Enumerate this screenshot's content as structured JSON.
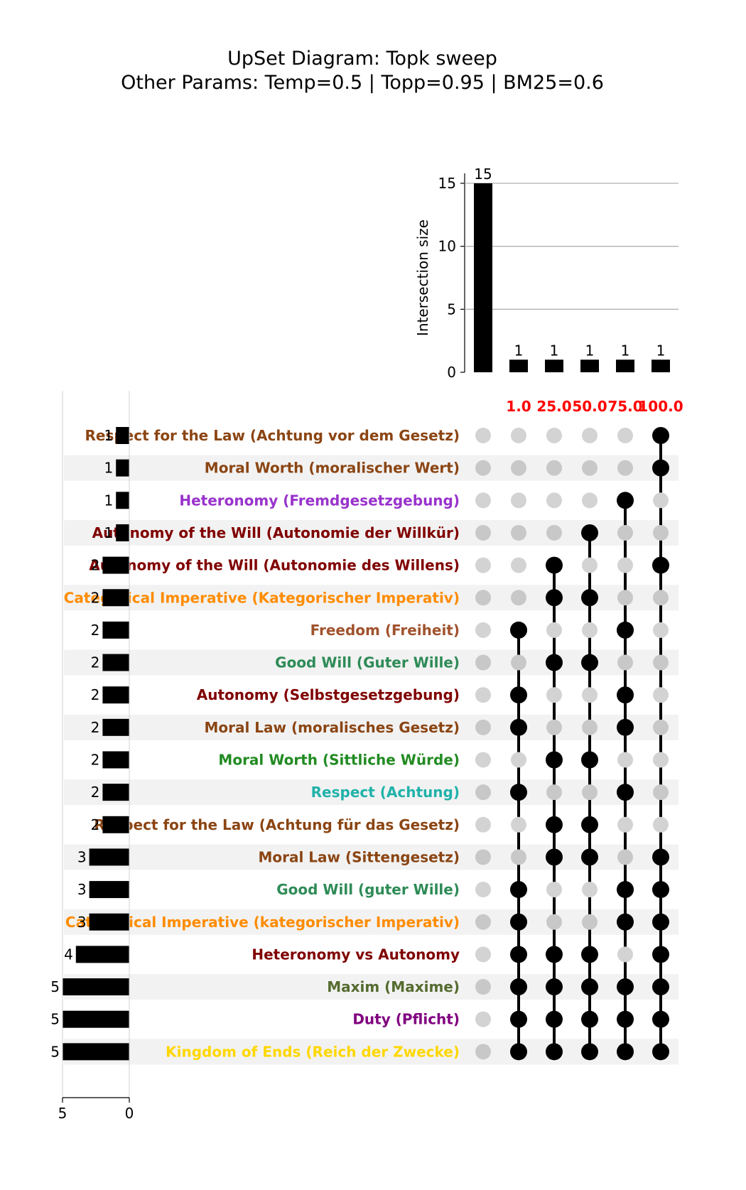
{
  "title": "UpSet Diagram: Topk sweep",
  "subtitle": "Other Params: Temp=0.5 | Topp=0.95 | BM25=0.6",
  "chart_data": {
    "type": "upset",
    "intersection_ylabel": "Intersection size",
    "intersection_yticks": [
      0,
      5,
      10,
      15
    ],
    "set_size_ticks": [
      5,
      0
    ],
    "columns": [
      "",
      "1.0",
      "25.0",
      "50.0",
      "75.0",
      "100.0"
    ],
    "column_label_color": "#ff0000",
    "intersection_sizes": [
      15,
      1,
      1,
      1,
      1,
      1
    ],
    "sets": [
      {
        "name": "Respect for the Law (Achtung vor dem Gesetz)",
        "size": 1,
        "color": "#8b4513",
        "members": [
          0,
          0,
          0,
          0,
          0,
          1
        ]
      },
      {
        "name": "Moral Worth (moralischer Wert)",
        "size": 1,
        "color": "#8b4513",
        "members": [
          0,
          0,
          0,
          0,
          0,
          1
        ]
      },
      {
        "name": "Heteronomy (Fremdgesetzgebung)",
        "size": 1,
        "color": "#9932cc",
        "members": [
          0,
          0,
          0,
          0,
          1,
          0
        ]
      },
      {
        "name": "Autonomy of the Will (Autonomie der Willkür)",
        "size": 1,
        "color": "#800000",
        "members": [
          0,
          0,
          0,
          1,
          0,
          0
        ]
      },
      {
        "name": "Autonomy of the Will (Autonomie des Willens)",
        "size": 2,
        "color": "#800000",
        "members": [
          0,
          0,
          1,
          0,
          0,
          1
        ]
      },
      {
        "name": "Categorical Imperative (Kategorischer Imperativ)",
        "size": 2,
        "color": "#ff8c00",
        "members": [
          0,
          0,
          1,
          1,
          0,
          0
        ]
      },
      {
        "name": "Freedom (Freiheit)",
        "size": 2,
        "color": "#a0522d",
        "members": [
          0,
          1,
          0,
          0,
          1,
          0
        ]
      },
      {
        "name": "Good Will (Guter Wille)",
        "size": 2,
        "color": "#2e8b57",
        "members": [
          0,
          0,
          1,
          1,
          0,
          0
        ]
      },
      {
        "name": "Autonomy (Selbstgesetzgebung)",
        "size": 2,
        "color": "#800000",
        "members": [
          0,
          1,
          0,
          0,
          1,
          0
        ]
      },
      {
        "name": "Moral Law (moralisches Gesetz)",
        "size": 2,
        "color": "#8b4513",
        "members": [
          0,
          1,
          0,
          0,
          1,
          0
        ]
      },
      {
        "name": "Moral Worth (Sittliche Würde)",
        "size": 2,
        "color": "#228b22",
        "members": [
          0,
          0,
          1,
          1,
          0,
          0
        ]
      },
      {
        "name": "Respect (Achtung)",
        "size": 2,
        "color": "#20b2aa",
        "members": [
          0,
          1,
          0,
          0,
          1,
          0
        ]
      },
      {
        "name": "Respect for the Law (Achtung für das Gesetz)",
        "size": 2,
        "color": "#8b4513",
        "members": [
          0,
          0,
          1,
          1,
          0,
          0
        ]
      },
      {
        "name": "Moral Law (Sittengesetz)",
        "size": 3,
        "color": "#8b4513",
        "members": [
          0,
          0,
          1,
          1,
          0,
          1
        ]
      },
      {
        "name": "Good Will (guter Wille)",
        "size": 3,
        "color": "#2e8b57",
        "members": [
          0,
          1,
          0,
          0,
          1,
          1
        ]
      },
      {
        "name": "Categorical Imperative (kategorischer Imperativ)",
        "size": 3,
        "color": "#ff8c00",
        "members": [
          0,
          1,
          0,
          0,
          1,
          1
        ]
      },
      {
        "name": "Heteronomy vs Autonomy",
        "size": 4,
        "color": "#800000",
        "members": [
          0,
          1,
          1,
          1,
          0,
          1
        ]
      },
      {
        "name": "Maxim (Maxime)",
        "size": 5,
        "color": "#556b2f",
        "members": [
          0,
          1,
          1,
          1,
          1,
          1
        ]
      },
      {
        "name": "Duty (Pflicht)",
        "size": 5,
        "color": "#800080",
        "members": [
          0,
          1,
          1,
          1,
          1,
          1
        ]
      },
      {
        "name": "Kingdom of Ends (Reich der Zwecke)",
        "size": 5,
        "color": "#ffd700",
        "members": [
          0,
          1,
          1,
          1,
          1,
          1
        ]
      }
    ]
  }
}
